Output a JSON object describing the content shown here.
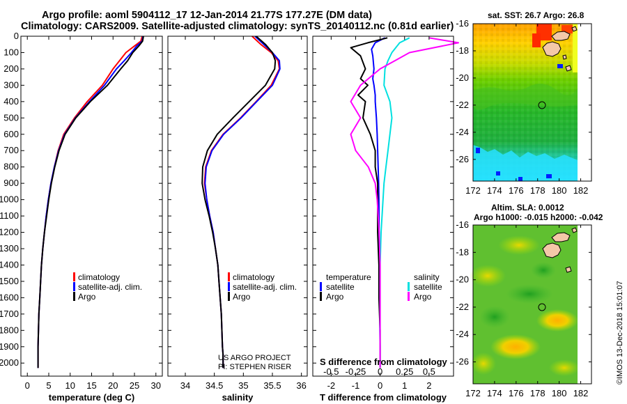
{
  "title_line1": "Argo profile: aoml 5904112_17 12-Jan-2014 21.77S 177.27E (DM data)",
  "title_line2": "Climatology: CARS2009. Satellite-adjusted climatology: synTS_20140112.nc (0.81d earlier)",
  "colors": {
    "climatology": "#ff0000",
    "satellite": "#0000ff",
    "argo": "#000000",
    "salinity_satellite": "#00e0e0",
    "salinity_argo": "#ff00ff"
  },
  "credit": {
    "line1": "US ARGO PROJECT",
    "line2": "PI: STEPHEN RISER"
  },
  "watermark": "©IMOS 13-Dec-2018 15:01:07",
  "chart_data": [
    {
      "type": "line",
      "title": "",
      "xlabel": "temperature (deg C)",
      "ylabel": "",
      "xlim": [
        -1.5,
        31.5
      ],
      "ylim": [
        2080,
        0
      ],
      "xticks": [
        0,
        5,
        10,
        15,
        20,
        25,
        30
      ],
      "yticks": [
        0,
        100,
        200,
        300,
        400,
        500,
        600,
        700,
        800,
        900,
        1000,
        1100,
        1200,
        1300,
        1400,
        1500,
        1600,
        1700,
        1800,
        1900,
        2000
      ],
      "legend": {
        "position": "lower-right",
        "entries": [
          "climatology",
          "satellite-adj. clim.",
          "Argo"
        ]
      },
      "series": [
        {
          "name": "climatology",
          "color": "#ff0000",
          "x": [
            26.8,
            26.5,
            25.0,
            23.0,
            21.5,
            20.0,
            17.5,
            14.0,
            11.0,
            8.5,
            7.2,
            6.3,
            5.5,
            4.9,
            4.4,
            4.0,
            3.6,
            3.3,
            3.1,
            2.9,
            2.7,
            2.6,
            2.5,
            2.5
          ],
          "y": [
            0,
            30,
            60,
            100,
            150,
            200,
            300,
            400,
            500,
            600,
            700,
            800,
            900,
            1000,
            1100,
            1200,
            1300,
            1400,
            1500,
            1600,
            1700,
            1800,
            1900,
            2030
          ]
        },
        {
          "name": "satellite-adj. clim.",
          "color": "#0000ff",
          "x": [
            27.0,
            26.8,
            25.5,
            24.3,
            22.6,
            20.8,
            18.0,
            14.5,
            11.2,
            8.7,
            7.3,
            6.3,
            5.5,
            4.9,
            4.4,
            4.0,
            3.6,
            3.3,
            3.1,
            2.9,
            2.7,
            2.6,
            2.5,
            2.5
          ],
          "y": [
            0,
            30,
            60,
            100,
            150,
            200,
            300,
            400,
            500,
            600,
            700,
            800,
            900,
            1000,
            1100,
            1200,
            1300,
            1400,
            1500,
            1600,
            1700,
            1800,
            1900,
            2030
          ]
        },
        {
          "name": "Argo",
          "color": "#000000",
          "x": [
            27.1,
            26.9,
            26.0,
            24.6,
            23.4,
            21.8,
            18.7,
            14.7,
            11.3,
            8.8,
            7.4,
            6.4,
            5.6,
            5.0,
            4.5,
            4.0,
            3.6,
            3.3,
            3.1,
            2.9,
            2.7,
            2.6,
            2.5,
            2.5
          ],
          "y": [
            0,
            30,
            60,
            100,
            150,
            200,
            300,
            400,
            500,
            600,
            700,
            800,
            900,
            1000,
            1100,
            1200,
            1300,
            1400,
            1500,
            1600,
            1700,
            1800,
            1900,
            2030
          ]
        }
      ]
    },
    {
      "type": "line",
      "title": "",
      "xlabel": "salinity",
      "ylabel": "",
      "xlim": [
        33.7,
        36.1
      ],
      "ylim": [
        2080,
        0
      ],
      "xticks": [
        34,
        34.5,
        35,
        35.5,
        36
      ],
      "legend": {
        "position": "lower-right",
        "entries": [
          "climatology",
          "satellite-adj. clim.",
          "Argo"
        ]
      },
      "series": [
        {
          "name": "climatology",
          "color": "#ff0000",
          "x": [
            35.15,
            35.3,
            35.48,
            35.6,
            35.62,
            35.48,
            35.22,
            34.95,
            34.65,
            34.45,
            34.35,
            34.33,
            34.37,
            34.42,
            34.48,
            34.52,
            34.56,
            34.58,
            34.6,
            34.62,
            34.63,
            34.64,
            34.65,
            34.65
          ],
          "y": [
            0,
            50,
            100,
            150,
            200,
            300,
            400,
            500,
            600,
            700,
            800,
            900,
            1000,
            1100,
            1200,
            1300,
            1400,
            1500,
            1600,
            1700,
            1800,
            1900,
            1950,
            2030
          ]
        },
        {
          "name": "satellite-adj. clim.",
          "color": "#0000ff",
          "x": [
            35.2,
            35.35,
            35.5,
            35.62,
            35.63,
            35.5,
            35.23,
            34.96,
            34.66,
            34.46,
            34.36,
            34.34,
            34.37,
            34.42,
            34.48,
            34.52,
            34.56,
            34.58,
            34.6,
            34.62,
            34.63,
            34.64,
            34.65,
            34.65
          ],
          "y": [
            0,
            50,
            100,
            150,
            200,
            300,
            400,
            500,
            600,
            700,
            800,
            900,
            1000,
            1100,
            1200,
            1300,
            1400,
            1500,
            1600,
            1700,
            1800,
            1900,
            1950,
            2030
          ]
        },
        {
          "name": "Argo",
          "color": "#000000",
          "x": [
            35.22,
            35.38,
            35.5,
            35.55,
            35.54,
            35.38,
            35.1,
            34.82,
            34.55,
            34.38,
            34.3,
            34.29,
            34.34,
            34.41,
            34.47,
            34.52,
            34.56,
            34.58,
            34.6,
            34.62,
            34.63,
            34.64,
            34.65,
            34.65
          ],
          "y": [
            0,
            50,
            100,
            150,
            200,
            300,
            400,
            500,
            600,
            700,
            800,
            900,
            1000,
            1100,
            1200,
            1300,
            1400,
            1500,
            1600,
            1700,
            1800,
            1900,
            1950,
            2030
          ]
        }
      ]
    },
    {
      "type": "line",
      "title": "",
      "xlabel": "T difference from climatology",
      "secondary_xlabel": "S difference from climatology",
      "ylabel": "",
      "xlim": [
        -2.75,
        3.0
      ],
      "ylim": [
        2080,
        0
      ],
      "xticks": [
        -2,
        -1,
        0,
        1,
        2
      ],
      "secondary_xticks": [
        -0.5,
        -0.25,
        0,
        0.25,
        0.5
      ],
      "secondary_xticklabels": [
        "-0.5",
        "-0.25",
        "0",
        "0.25",
        "0.5"
      ],
      "legend": {
        "position": "lower",
        "groups": [
          {
            "heading": "temperature",
            "entries": [
              "satellite",
              "Argo"
            ]
          },
          {
            "heading": "salinity",
            "entries": [
              "satellite",
              "Argo"
            ]
          }
        ]
      },
      "series": [
        {
          "name": "temperature satellite",
          "color": "#0000ff",
          "x": [
            0.2,
            -0.2,
            -0.35,
            -0.3,
            -0.25,
            -0.3,
            -0.25,
            -0.2,
            -0.2,
            -0.15,
            -0.12,
            -0.1,
            -0.08,
            -0.06,
            -0.05,
            -0.04,
            -0.03,
            -0.02,
            -0.01,
            -0.01,
            0.0,
            0.0
          ],
          "y": [
            10,
            40,
            80,
            120,
            200,
            260,
            300,
            360,
            400,
            500,
            600,
            700,
            800,
            900,
            1000,
            1200,
            1400,
            1500,
            1600,
            1800,
            1900,
            2030
          ]
        },
        {
          "name": "temperature Argo",
          "color": "#000000",
          "x": [
            0.3,
            -0.5,
            -1.2,
            -0.8,
            -0.6,
            -0.8,
            -0.5,
            -0.9,
            -0.6,
            -0.7,
            -0.4,
            -0.2,
            -0.2,
            -0.1,
            -0.1,
            -0.1,
            -0.05,
            -0.05,
            -0.05,
            0.0,
            0.0,
            0.0
          ],
          "y": [
            10,
            40,
            70,
            120,
            200,
            260,
            300,
            360,
            400,
            500,
            600,
            700,
            800,
            900,
            1000,
            1200,
            1400,
            1500,
            1600,
            1800,
            1900,
            2030
          ]
        },
        {
          "name": "salinity satellite",
          "color": "#00e0e0",
          "x": [
            0.3,
            0.2,
            0.12,
            0.08,
            0.05,
            0.04,
            0.1,
            0.12,
            0.1,
            0.08,
            0.06,
            0.04,
            0.03,
            0.02,
            0.01,
            0.0,
            0.0,
            0.0,
            0.0,
            0.0
          ],
          "y": [
            10,
            40,
            100,
            150,
            200,
            300,
            400,
            500,
            600,
            700,
            800,
            900,
            1000,
            1100,
            1200,
            1400,
            1500,
            1600,
            1800,
            2030
          ]
        },
        {
          "name": "salinity Argo",
          "color": "#ff00ff",
          "x": [
            0.5,
            0.8,
            0.3,
            0.15,
            0.0,
            -0.2,
            -0.3,
            -0.2,
            -0.3,
            -0.25,
            -0.12,
            -0.05,
            -0.03,
            -0.02,
            -0.01,
            0.0,
            0.0,
            0.0,
            0.0,
            0.0
          ],
          "y": [
            10,
            40,
            100,
            150,
            200,
            300,
            400,
            500,
            600,
            700,
            800,
            900,
            1000,
            1100,
            1200,
            1400,
            1500,
            1600,
            1800,
            2030
          ]
        }
      ]
    },
    {
      "type": "heatmap",
      "title": "sat. SST: 26.7 Argo: 26.8",
      "xlim": [
        172,
        183
      ],
      "ylim": [
        -27.6,
        -16
      ],
      "xticks": [
        172,
        174,
        176,
        178,
        180,
        182
      ],
      "yticks": [
        -16,
        -18,
        -20,
        -22,
        -24,
        -26
      ],
      "float_position": {
        "lon": 177.27,
        "lat": -21.77
      }
    },
    {
      "type": "heatmap",
      "title_line1": "Altim. SLA: 0.0012",
      "title_line2": "Argo h1000: -0.015 h2000: -0.042",
      "xlim": [
        172,
        183
      ],
      "ylim": [
        -27.6,
        -16
      ],
      "xticks": [
        172,
        174,
        176,
        178,
        180,
        182
      ],
      "yticks": [
        -16,
        -18,
        -20,
        -22,
        -24,
        -26
      ],
      "float_position": {
        "lon": 177.27,
        "lat": -21.77
      }
    }
  ]
}
